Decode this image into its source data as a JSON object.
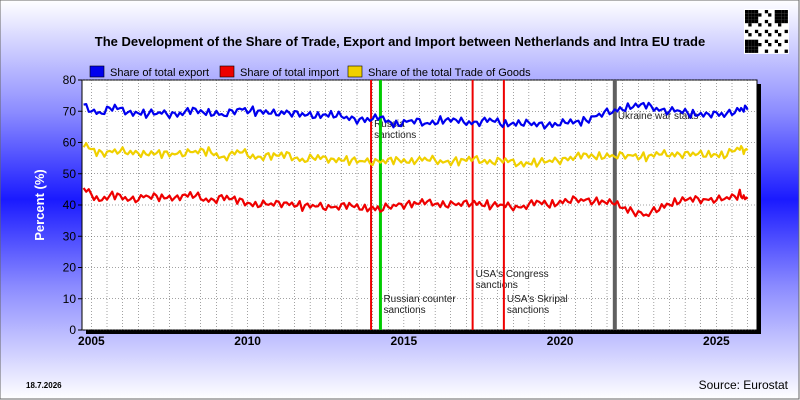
{
  "chart_data": {
    "type": "line",
    "title": "The Development of the Share of Trade, Export and Import between Netherlands and Intra EU trade",
    "ylabel": "Percent (%)",
    "xlabel": "",
    "ylim": [
      0,
      80
    ],
    "xlim": [
      2004.7,
      2026.3
    ],
    "y_ticks": [
      0,
      10,
      20,
      30,
      40,
      50,
      60,
      70,
      80
    ],
    "x_ticks": [
      2005,
      2010,
      2015,
      2020,
      2025
    ],
    "grid": true,
    "legend_position": "top",
    "series": [
      {
        "name": "Share of total export",
        "color": "#0000ee",
        "x": [
          2004.75,
          2005.25,
          2005.75,
          2006.25,
          2006.75,
          2007.25,
          2007.75,
          2008.25,
          2008.75,
          2009.25,
          2009.75,
          2010.25,
          2010.75,
          2011.25,
          2011.75,
          2012.25,
          2012.75,
          2013.25,
          2013.75,
          2014.25,
          2014.75,
          2015.25,
          2015.75,
          2016.25,
          2016.75,
          2017.25,
          2017.75,
          2018.25,
          2018.75,
          2019.25,
          2019.75,
          2020.25,
          2020.75,
          2021.25,
          2021.75,
          2022.25,
          2022.75,
          2023.25,
          2023.75,
          2024.25,
          2024.75,
          2025.25,
          2025.75,
          2026.0
        ],
        "values": [
          71.5,
          69.5,
          71,
          70,
          69,
          69.5,
          69,
          70,
          70,
          68.5,
          71,
          70,
          69,
          70,
          68.5,
          69,
          69,
          67.5,
          67.5,
          67.5,
          66,
          67,
          66,
          67.5,
          66.5,
          66.5,
          67,
          66,
          66.5,
          65.5,
          66,
          66,
          67,
          69,
          70,
          72,
          71.5,
          70.5,
          70,
          69,
          69.5,
          68.5,
          71,
          70.5
        ]
      },
      {
        "name": "Share of total import",
        "color": "#ee0000",
        "x": [
          2004.75,
          2005.25,
          2005.75,
          2006.25,
          2006.75,
          2007.25,
          2007.75,
          2008.25,
          2008.75,
          2009.25,
          2009.75,
          2010.25,
          2010.75,
          2011.25,
          2011.75,
          2012.25,
          2012.75,
          2013.25,
          2013.75,
          2014.25,
          2014.75,
          2015.25,
          2015.75,
          2016.25,
          2016.75,
          2017.25,
          2017.75,
          2018.25,
          2018.75,
          2019.25,
          2019.75,
          2020.25,
          2020.75,
          2021.25,
          2021.75,
          2022.25,
          2022.75,
          2023.25,
          2023.75,
          2024.25,
          2024.75,
          2025.25,
          2025.75,
          2026.0
        ],
        "values": [
          45,
          42,
          43,
          41.5,
          43,
          42,
          43,
          43,
          41.5,
          42.5,
          41,
          40.5,
          40,
          41,
          39.5,
          39.5,
          39.5,
          39.5,
          39.5,
          38.5,
          40,
          40.5,
          40.5,
          40.5,
          40,
          41,
          40,
          39.5,
          39.5,
          40.5,
          40.5,
          41.5,
          41.5,
          41.5,
          40,
          38.5,
          36.5,
          39.5,
          41.5,
          41.5,
          42,
          41.5,
          43.5,
          42
        ]
      },
      {
        "name": "Share of the total Trade of Goods",
        "color": "#f0d000",
        "x": [
          2004.75,
          2005.25,
          2005.75,
          2006.25,
          2006.75,
          2007.25,
          2007.75,
          2008.25,
          2008.75,
          2009.25,
          2009.75,
          2010.25,
          2010.75,
          2011.25,
          2011.75,
          2012.25,
          2012.75,
          2013.25,
          2013.75,
          2014.25,
          2014.75,
          2015.25,
          2015.75,
          2016.25,
          2016.75,
          2017.25,
          2017.75,
          2018.25,
          2018.75,
          2019.25,
          2019.75,
          2020.25,
          2020.75,
          2021.25,
          2021.75,
          2022.25,
          2022.75,
          2023.25,
          2023.75,
          2024.25,
          2024.75,
          2025.25,
          2025.75,
          2026.0
        ],
        "values": [
          59,
          56.5,
          57.5,
          56.5,
          57,
          56,
          56.5,
          57,
          57,
          55.5,
          57,
          55.5,
          55.5,
          56,
          54.5,
          55,
          55,
          54,
          54,
          54,
          54,
          54.5,
          54.5,
          54,
          54,
          54.5,
          54,
          54,
          53.5,
          53.5,
          54,
          55,
          55.5,
          56,
          55.5,
          56,
          55.5,
          56,
          56.5,
          56,
          56.5,
          56,
          58,
          57.5
        ]
      }
    ],
    "events": [
      {
        "x": 2013.95,
        "color": "#ee0000",
        "label_lines": [
          "Russia",
          "sanctions"
        ],
        "label_y": 65
      },
      {
        "x": 2014.25,
        "color": "#00cc00",
        "label_lines": [
          "Russian counter",
          "sanctions"
        ],
        "label_y": 9
      },
      {
        "x": 2017.2,
        "color": "#ee0000",
        "label_lines": [
          "USA's Congress",
          "sanctions"
        ],
        "label_y": 17
      },
      {
        "x": 2018.2,
        "color": "#ee0000",
        "label_lines": [
          "USA's Skripal",
          "sanctions"
        ],
        "label_y": 9
      },
      {
        "x": 2021.75,
        "color": "#606060",
        "label_lines": [
          "Ukraine war starts"
        ],
        "label_y": 67.5
      }
    ]
  },
  "footer": {
    "date": "18.7.2026",
    "source": "Source: Eurostat"
  }
}
